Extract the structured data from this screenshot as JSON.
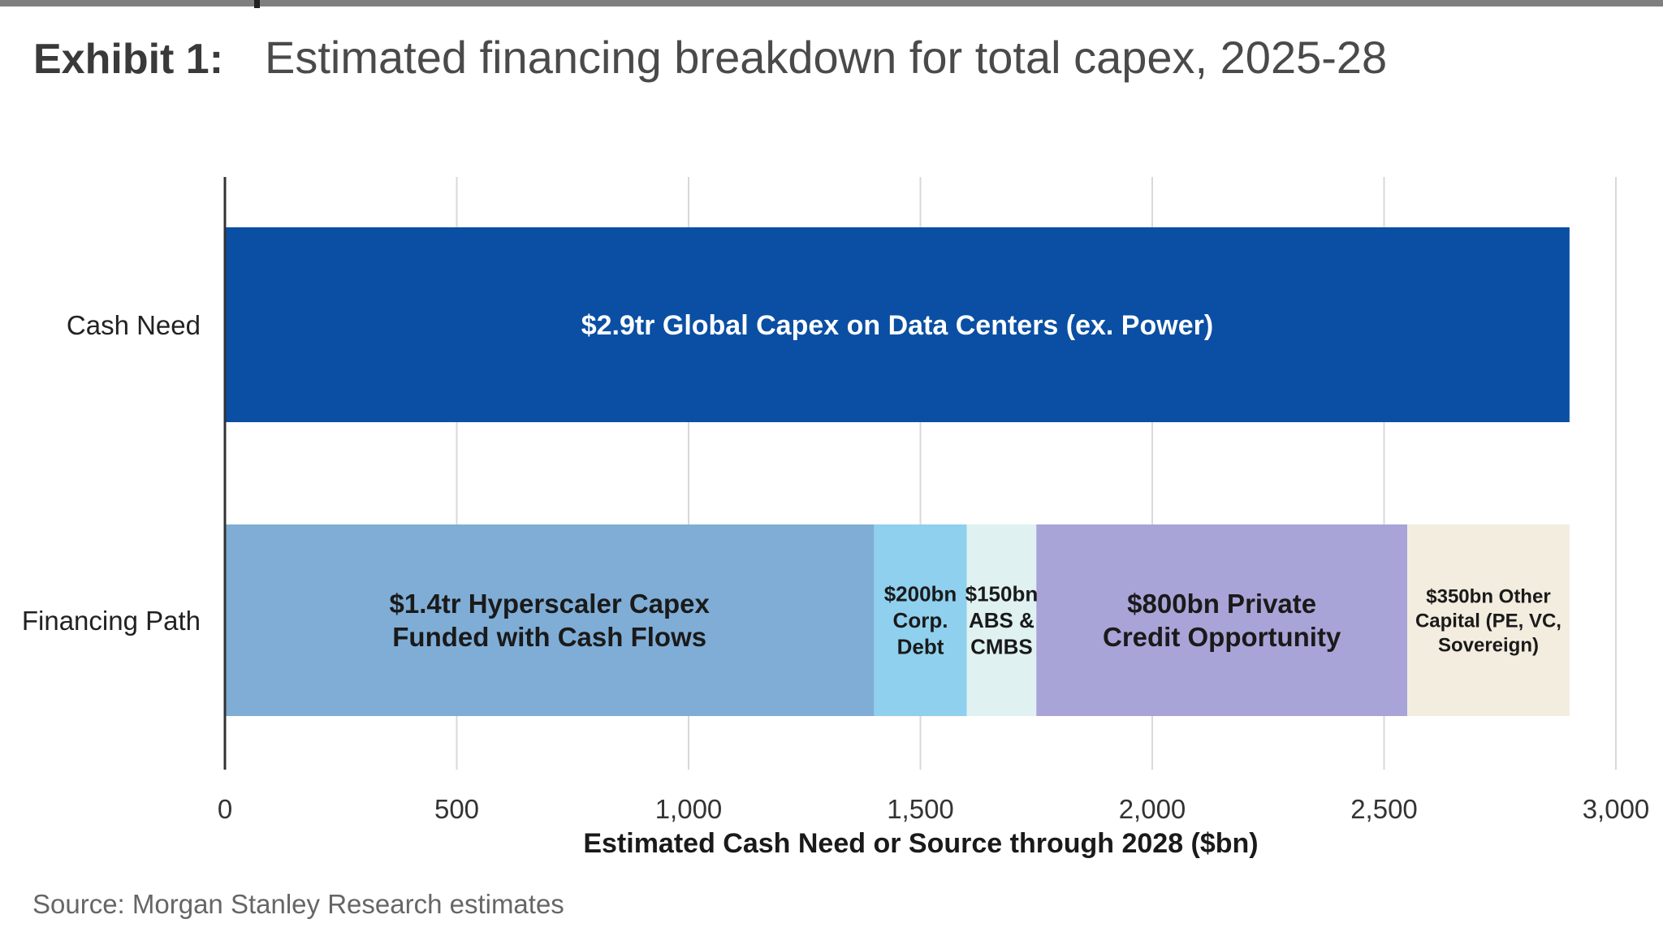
{
  "header": {
    "exhibit_label": "Exhibit 1:",
    "title": "Estimated financing breakdown for total capex, 2025-28"
  },
  "source": "Source: Morgan Stanley Research estimates",
  "colors": {
    "cash_need": "#0a4fa3",
    "hyperscaler": "#7fadd6",
    "corp_debt": "#8fd0ee",
    "abs_cmbs": "#dff2f1",
    "private_credit": "#a8a4d8",
    "other_capital": "#f3ede0",
    "grid": "#d9d9d9",
    "axis": "#333333"
  },
  "chart_data": {
    "type": "bar",
    "orientation": "horizontal",
    "stacked": true,
    "categories": [
      "Cash Need",
      "Financing Path"
    ],
    "xlabel": "Estimated Cash Need or Source through 2028 ($bn)",
    "xlim": [
      0,
      3000
    ],
    "xticks": [
      0,
      500,
      1000,
      1500,
      2000,
      2500,
      3000
    ],
    "xtick_labels": [
      "0",
      "500",
      "1,000",
      "1,500",
      "2,000",
      "2,500",
      "3,000"
    ],
    "grid": true,
    "segments": [
      {
        "category": "Cash Need",
        "start": 0,
        "value": 2900,
        "color_key": "cash_need",
        "label": [
          "$2.9tr Global Capex on Data Centers (ex. Power)"
        ],
        "label_color": "#ffffff"
      },
      {
        "category": "Financing Path",
        "start": 0,
        "value": 1400,
        "color_key": "hyperscaler",
        "label": [
          "$1.4tr Hyperscaler Capex",
          "Funded with Cash Flows"
        ],
        "label_color": "#1a1a1a"
      },
      {
        "category": "Financing Path",
        "start": 1400,
        "value": 200,
        "color_key": "corp_debt",
        "label": [
          "$200bn",
          "Corp.",
          "Debt"
        ],
        "label_color": "#1a1a1a"
      },
      {
        "category": "Financing Path",
        "start": 1600,
        "value": 150,
        "color_key": "abs_cmbs",
        "label": [
          "$150bn",
          "ABS &",
          "CMBS"
        ],
        "label_color": "#1a1a1a"
      },
      {
        "category": "Financing Path",
        "start": 1750,
        "value": 800,
        "color_key": "private_credit",
        "label": [
          "$800bn Private",
          "Credit Opportunity"
        ],
        "label_color": "#1a1a1a"
      },
      {
        "category": "Financing Path",
        "start": 2550,
        "value": 350,
        "color_key": "other_capital",
        "label": [
          "$350bn Other",
          "Capital (PE, VC,",
          "Sovereign)"
        ],
        "label_color": "#1a1a1a"
      }
    ]
  }
}
